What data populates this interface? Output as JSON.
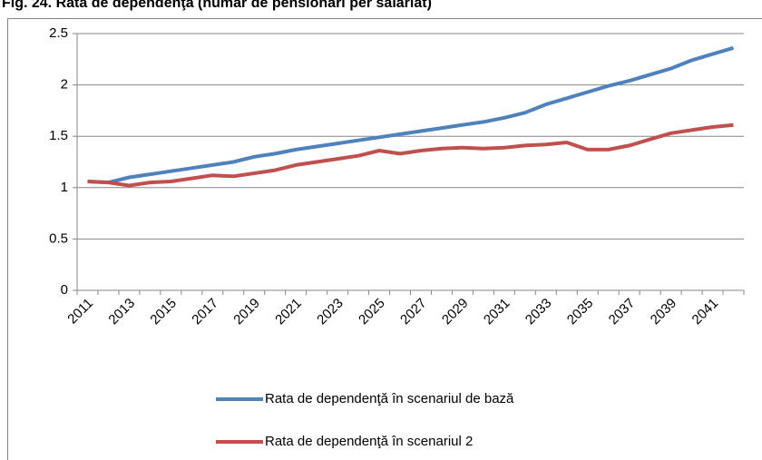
{
  "chart_data": {
    "type": "line",
    "title": "Fig. 24. Rata de dependenţa (număr de pensionari per salariat)",
    "categories": [
      "2011",
      null,
      "2013",
      null,
      "2015",
      null,
      "2017",
      null,
      "2019",
      null,
      "2021",
      null,
      "2023",
      null,
      "2025",
      null,
      "2027",
      null,
      "2029",
      null,
      "2031",
      null,
      "2033",
      null,
      "2035",
      null,
      "2037",
      null,
      "2039",
      null,
      "2041",
      null
    ],
    "series": [
      {
        "name": "Rata de dependenţă  în scenariul de bază",
        "color": "#4f81bd",
        "values": [
          1.06,
          1.05,
          1.1,
          1.13,
          1.16,
          1.19,
          1.22,
          1.25,
          1.3,
          1.33,
          1.37,
          1.4,
          1.43,
          1.46,
          1.49,
          1.52,
          1.55,
          1.58,
          1.61,
          1.64,
          1.68,
          1.73,
          1.81,
          1.87,
          1.93,
          1.99,
          2.04,
          2.1,
          2.16,
          2.24,
          2.3,
          2.36
        ]
      },
      {
        "name": "Rata de dependenţă  în scenariul 2",
        "color": "#c0504d",
        "values": [
          1.06,
          1.05,
          1.02,
          1.05,
          1.06,
          1.09,
          1.12,
          1.11,
          1.14,
          1.17,
          1.22,
          1.25,
          1.28,
          1.31,
          1.36,
          1.33,
          1.36,
          1.38,
          1.39,
          1.38,
          1.39,
          1.41,
          1.42,
          1.44,
          1.37,
          1.37,
          1.41,
          1.47,
          1.53,
          1.56,
          1.59,
          1.61
        ]
      }
    ],
    "ylim": [
      0,
      2.5
    ],
    "yticks": [
      0,
      0.5,
      1,
      1.5,
      2,
      2.5
    ],
    "grid": true,
    "legend": "bottom"
  }
}
